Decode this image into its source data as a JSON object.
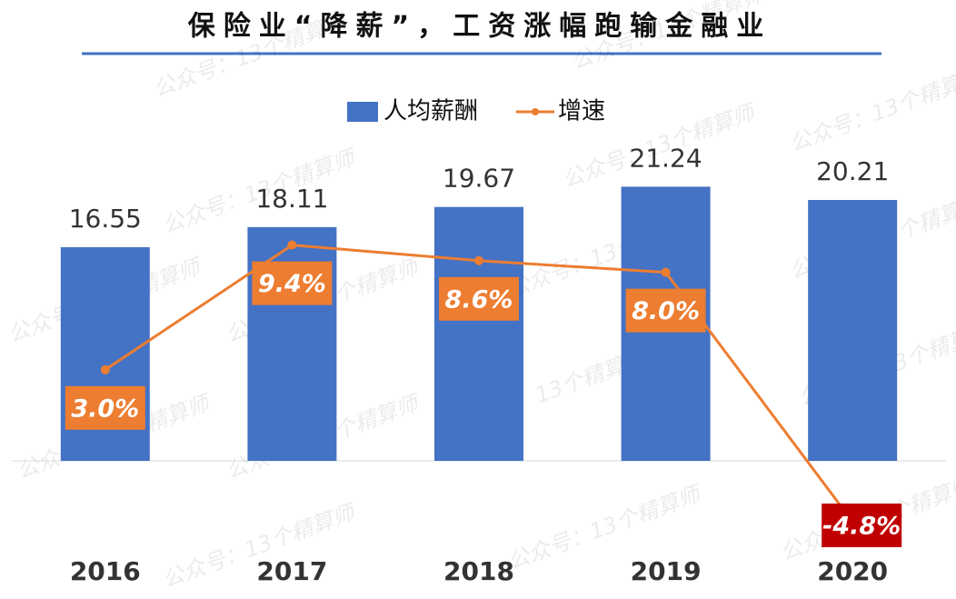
{
  "chart_data": {
    "type": "bar-line",
    "title": "保险业“降薪”，工资涨幅跑输金融业",
    "watermark": "公众号：13个精算师",
    "categories": [
      "2016",
      "2017",
      "2018",
      "2019",
      "2020"
    ],
    "series": [
      {
        "name": "人均薪酬",
        "type": "bar",
        "color": "#4472c4",
        "values": [
          16.55,
          18.11,
          19.67,
          21.24,
          20.21
        ]
      },
      {
        "name": "增速",
        "type": "line",
        "axis": "y2",
        "color": "#ed7d31",
        "values": [
          3.0,
          9.4,
          8.6,
          8.0,
          -4.8
        ],
        "value_labels": [
          "3.0%",
          "9.4%",
          "8.6%",
          "8.0%",
          "-4.8%"
        ],
        "label_color": "#ed7d31",
        "negative_label_color": "#c00000"
      }
    ],
    "ylim": [
      -10,
      30
    ],
    "y2lim": [
      -8.3,
      18.2
    ],
    "legend": "top"
  }
}
